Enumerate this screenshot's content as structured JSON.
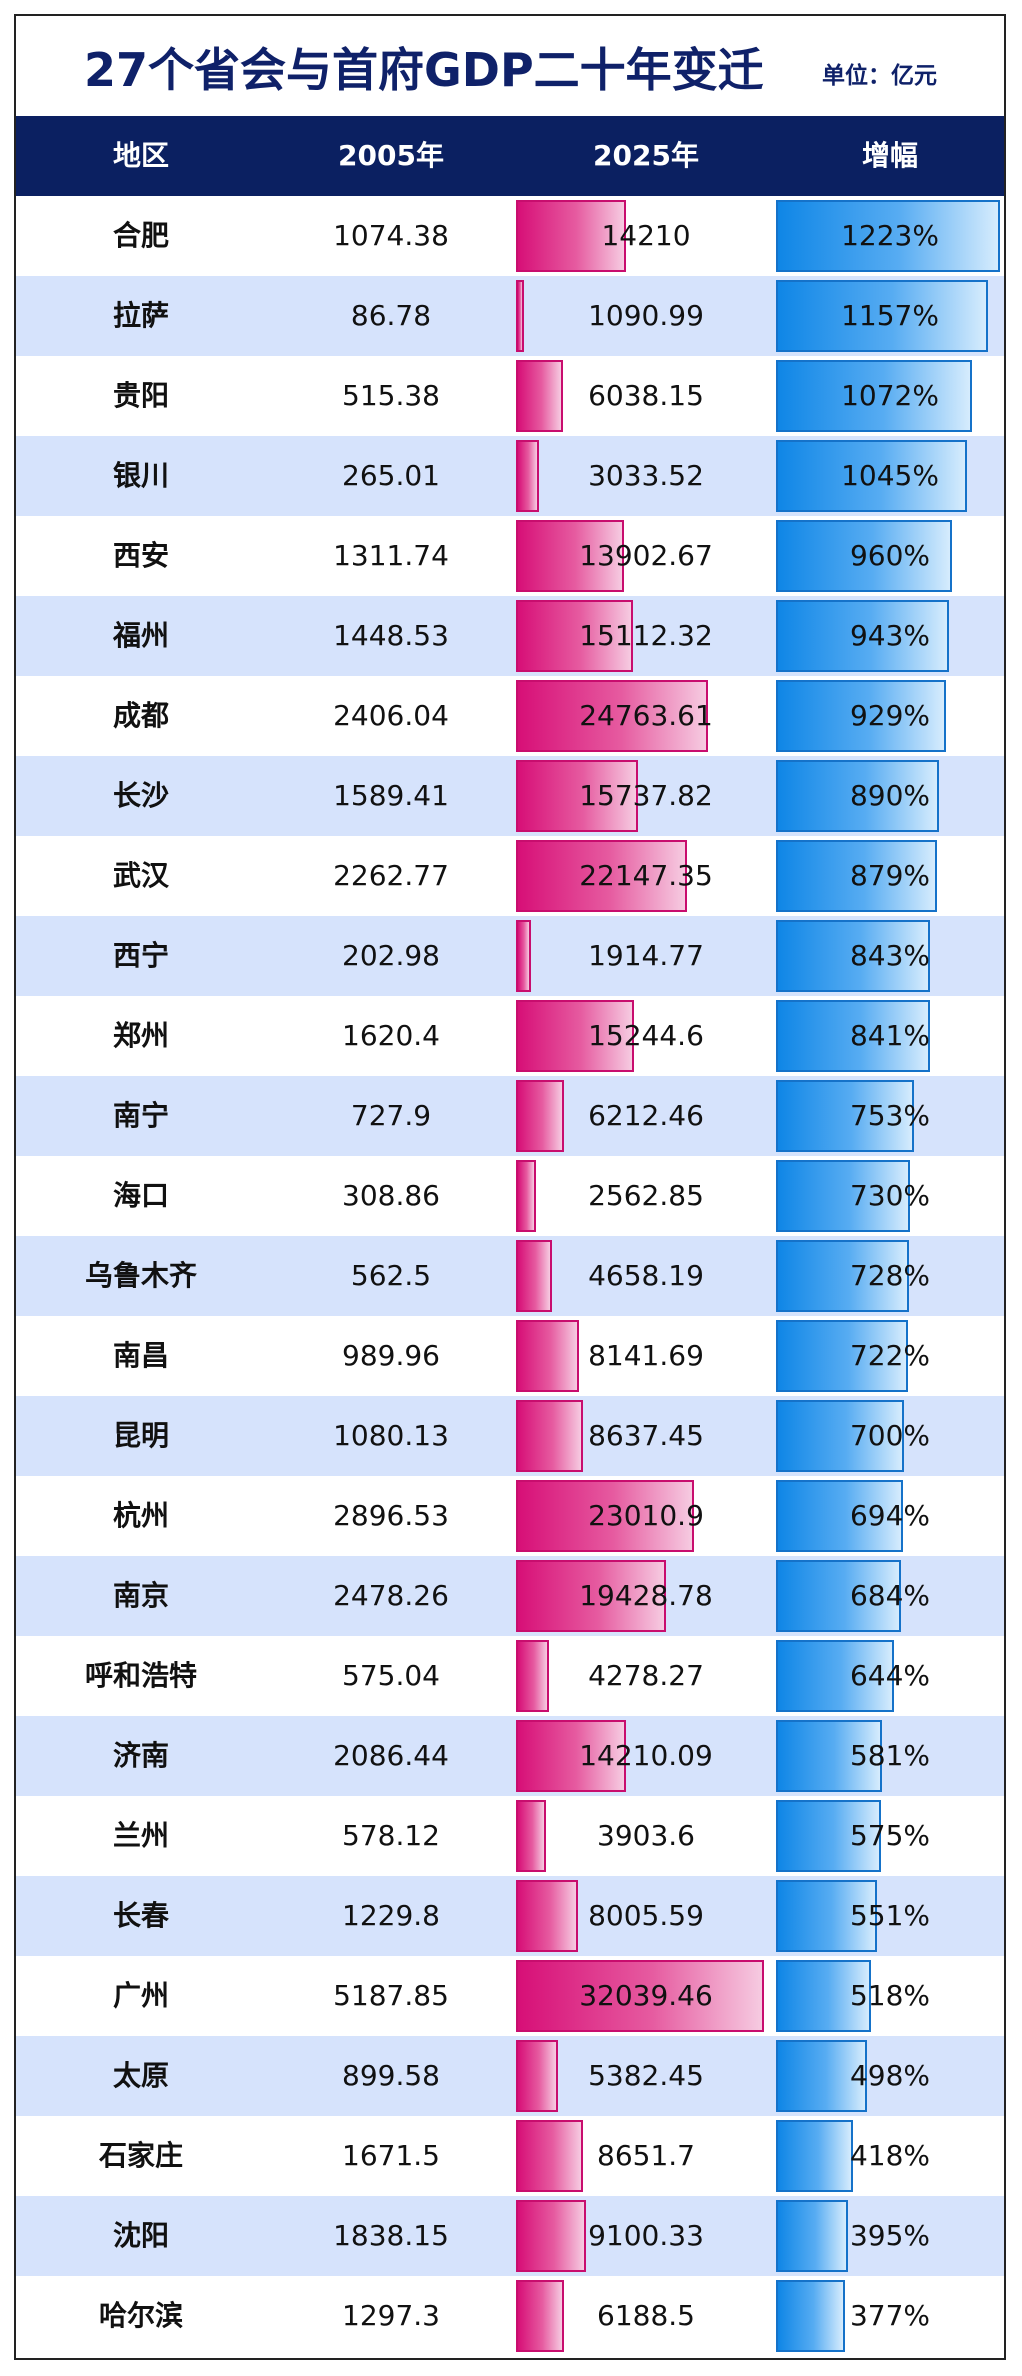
{
  "title": "27个省会与首府GDP二十年变迁",
  "unit": "单位：亿元",
  "headers": [
    "地区",
    "2005年",
    "2025年",
    "增幅"
  ],
  "colors": {
    "header_bg": "#0b2061",
    "odd_row_bg": "#d6e3fc",
    "bar_2025": "#d70f77",
    "bar_growth": "#0f86e6"
  },
  "chart_data": {
    "type": "table",
    "columns": [
      "地区",
      "2005年",
      "2025年",
      "增幅"
    ],
    "rows": [
      {
        "city": "合肥",
        "gdp2005": "1074.38",
        "gdp2025": "14210",
        "growth": "1223%"
      },
      {
        "city": "拉萨",
        "gdp2005": "86.78",
        "gdp2025": "1090.99",
        "growth": "1157%"
      },
      {
        "city": "贵阳",
        "gdp2005": "515.38",
        "gdp2025": "6038.15",
        "growth": "1072%"
      },
      {
        "city": "银川",
        "gdp2005": "265.01",
        "gdp2025": "3033.52",
        "growth": "1045%"
      },
      {
        "city": "西安",
        "gdp2005": "1311.74",
        "gdp2025": "13902.67",
        "growth": "960%"
      },
      {
        "city": "福州",
        "gdp2005": "1448.53",
        "gdp2025": "15112.32",
        "growth": "943%"
      },
      {
        "city": "成都",
        "gdp2005": "2406.04",
        "gdp2025": "24763.61",
        "growth": "929%"
      },
      {
        "city": "长沙",
        "gdp2005": "1589.41",
        "gdp2025": "15737.82",
        "growth": "890%"
      },
      {
        "city": "武汉",
        "gdp2005": "2262.77",
        "gdp2025": "22147.35",
        "growth": "879%"
      },
      {
        "city": "西宁",
        "gdp2005": "202.98",
        "gdp2025": "1914.77",
        "growth": "843%"
      },
      {
        "city": "郑州",
        "gdp2005": "1620.4",
        "gdp2025": "15244.6",
        "growth": "841%"
      },
      {
        "city": "南宁",
        "gdp2005": "727.9",
        "gdp2025": "6212.46",
        "growth": "753%"
      },
      {
        "city": "海口",
        "gdp2005": "308.86",
        "gdp2025": "2562.85",
        "growth": "730%"
      },
      {
        "city": "乌鲁木齐",
        "gdp2005": "562.5",
        "gdp2025": "4658.19",
        "growth": "728%"
      },
      {
        "city": "南昌",
        "gdp2005": "989.96",
        "gdp2025": "8141.69",
        "growth": "722%"
      },
      {
        "city": "昆明",
        "gdp2005": "1080.13",
        "gdp2025": "8637.45",
        "growth": "700%"
      },
      {
        "city": "杭州",
        "gdp2005": "2896.53",
        "gdp2025": "23010.9",
        "growth": "694%"
      },
      {
        "city": "南京",
        "gdp2005": "2478.26",
        "gdp2025": "19428.78",
        "growth": "684%"
      },
      {
        "city": "呼和浩特",
        "gdp2005": "575.04",
        "gdp2025": "4278.27",
        "growth": "644%"
      },
      {
        "city": "济南",
        "gdp2005": "2086.44",
        "gdp2025": "14210.09",
        "growth": "581%"
      },
      {
        "city": "兰州",
        "gdp2005": "578.12",
        "gdp2025": "3903.6",
        "growth": "575%"
      },
      {
        "city": "长春",
        "gdp2005": "1229.8",
        "gdp2025": "8005.59",
        "growth": "551%"
      },
      {
        "city": "广州",
        "gdp2005": "5187.85",
        "gdp2025": "32039.46",
        "growth": "518%"
      },
      {
        "city": "太原",
        "gdp2005": "899.58",
        "gdp2025": "5382.45",
        "growth": "498%"
      },
      {
        "city": "石家庄",
        "gdp2005": "1671.5",
        "gdp2025": "8651.7",
        "growth": "418%"
      },
      {
        "city": "沈阳",
        "gdp2005": "1838.15",
        "gdp2025": "9100.33",
        "growth": "395%"
      },
      {
        "city": "哈尔滨",
        "gdp2005": "1297.3",
        "gdp2025": "6188.5",
        "growth": "377%"
      }
    ]
  }
}
